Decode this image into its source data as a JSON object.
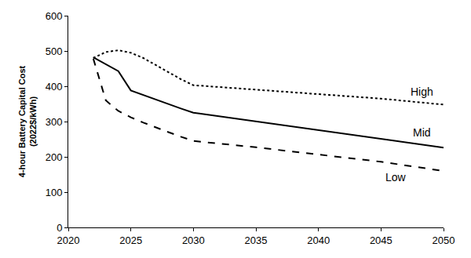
{
  "chart_data": {
    "type": "line",
    "y_label": "4-hour Battery Capital Cost\n(2022$/kWh)",
    "x": [
      2022,
      2023,
      2024,
      2025,
      2026,
      2027,
      2028,
      2029,
      2030,
      2035,
      2040,
      2045,
      2050
    ],
    "series": [
      {
        "name": "High",
        "color": "#000000",
        "line_style": "dotted",
        "values": [
          480,
          497,
          502,
          495,
          480,
          460,
          440,
          420,
          403,
          390,
          378,
          365,
          348
        ]
      },
      {
        "name": "Mid",
        "color": "#000000",
        "line_style": "solid",
        "values": [
          482,
          462,
          443,
          388,
          375,
          362,
          350,
          337,
          325,
          300,
          276,
          251,
          226
        ]
      },
      {
        "name": "Low",
        "color": "#000000",
        "line_style": "dashed",
        "values": [
          478,
          360,
          330,
          312,
          297,
          283,
          270,
          257,
          245,
          227,
          207,
          186,
          160
        ]
      }
    ],
    "annotations": [
      {
        "text": "High",
        "x": 2048.3,
        "y": 385
      },
      {
        "text": "Mid",
        "x": 2048.3,
        "y": 268
      },
      {
        "text": "Low",
        "x": 2046.2,
        "y": 142
      }
    ],
    "xlim": [
      2020,
      2050
    ],
    "xticks": [
      2020,
      2025,
      2030,
      2035,
      2040,
      2045,
      2050
    ],
    "ylim": [
      0,
      600
    ],
    "yticks": [
      0,
      100,
      200,
      300,
      400,
      500,
      600
    ],
    "grid": false
  }
}
